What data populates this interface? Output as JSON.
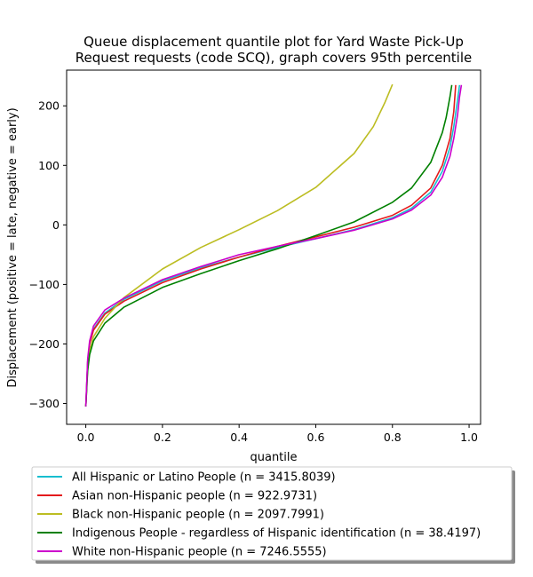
{
  "chart_data": {
    "type": "line",
    "title_line1": "Queue displacement quantile plot for Yard Waste Pick-Up",
    "title_line2": "Request  requests (code SCQ), graph covers 95th percentile",
    "xlabel": "quantile",
    "ylabel": "Displacement (positive = late, negative = early)",
    "xlim": [
      -0.05,
      1.03
    ],
    "ylim": [
      -335,
      260
    ],
    "xticks": [
      "0.0",
      "0.2",
      "0.4",
      "0.6",
      "0.8",
      "1.0"
    ],
    "xtick_values": [
      0.0,
      0.2,
      0.4,
      0.6,
      0.8,
      1.0
    ],
    "yticks": [
      "−300",
      "−200",
      "−100",
      "0",
      "100",
      "200"
    ],
    "ytick_values": [
      -300,
      -200,
      -100,
      0,
      100,
      200
    ],
    "grid": false,
    "legend_position": "below plot",
    "series": [
      {
        "name": "All Hispanic or Latino People (n = 3415.8039)",
        "color": "#17becf",
        "x": [
          0.0,
          0.005,
          0.01,
          0.02,
          0.05,
          0.1,
          0.2,
          0.3,
          0.4,
          0.5,
          0.6,
          0.7,
          0.8,
          0.85,
          0.9,
          0.93,
          0.95,
          0.96,
          0.97,
          0.975
        ],
        "y": [
          -305,
          -230,
          -200,
          -175,
          -148,
          -125,
          -94,
          -72,
          -54,
          -38,
          -23,
          -8,
          12,
          28,
          55,
          90,
          130,
          165,
          210,
          235
        ]
      },
      {
        "name": "Asian non-Hispanic people (n = 922.9731)",
        "color": "#e41a1c",
        "x": [
          0.0,
          0.005,
          0.01,
          0.02,
          0.05,
          0.1,
          0.2,
          0.3,
          0.4,
          0.5,
          0.6,
          0.7,
          0.8,
          0.85,
          0.9,
          0.93,
          0.95,
          0.96,
          0.965
        ],
        "y": [
          -305,
          -230,
          -200,
          -177,
          -150,
          -128,
          -97,
          -74,
          -54,
          -36,
          -20,
          -4,
          16,
          33,
          62,
          100,
          145,
          190,
          235
        ]
      },
      {
        "name": "Black non-Hispanic people (n = 2097.7991)",
        "color": "#bcbd22",
        "x": [
          0.0,
          0.005,
          0.01,
          0.02,
          0.05,
          0.1,
          0.2,
          0.3,
          0.4,
          0.5,
          0.6,
          0.7,
          0.75,
          0.78,
          0.8
        ],
        "y": [
          -305,
          -240,
          -213,
          -188,
          -157,
          -122,
          -74,
          -38,
          -8,
          24,
          63,
          120,
          165,
          205,
          236
        ]
      },
      {
        "name": "Indigenous People - regardless of Hispanic identification (n = 38.4197)",
        "color": "#008000",
        "x": [
          0.0,
          0.005,
          0.01,
          0.02,
          0.05,
          0.1,
          0.2,
          0.3,
          0.4,
          0.5,
          0.6,
          0.7,
          0.8,
          0.85,
          0.9,
          0.93,
          0.94,
          0.95,
          0.955
        ],
        "y": [
          -305,
          -245,
          -218,
          -195,
          -165,
          -138,
          -105,
          -82,
          -60,
          -40,
          -18,
          5,
          38,
          62,
          105,
          155,
          180,
          215,
          235
        ]
      },
      {
        "name": "White non-Hispanic people (n = 7246.5555)",
        "color": "#cc00cc",
        "x": [
          0.0,
          0.005,
          0.01,
          0.02,
          0.05,
          0.1,
          0.2,
          0.3,
          0.4,
          0.5,
          0.6,
          0.7,
          0.8,
          0.85,
          0.9,
          0.93,
          0.95,
          0.96,
          0.97,
          0.975,
          0.98
        ],
        "y": [
          -305,
          -225,
          -195,
          -170,
          -143,
          -123,
          -92,
          -70,
          -50,
          -36,
          -23,
          -9,
          10,
          25,
          50,
          80,
          115,
          145,
          185,
          215,
          235
        ]
      }
    ]
  }
}
